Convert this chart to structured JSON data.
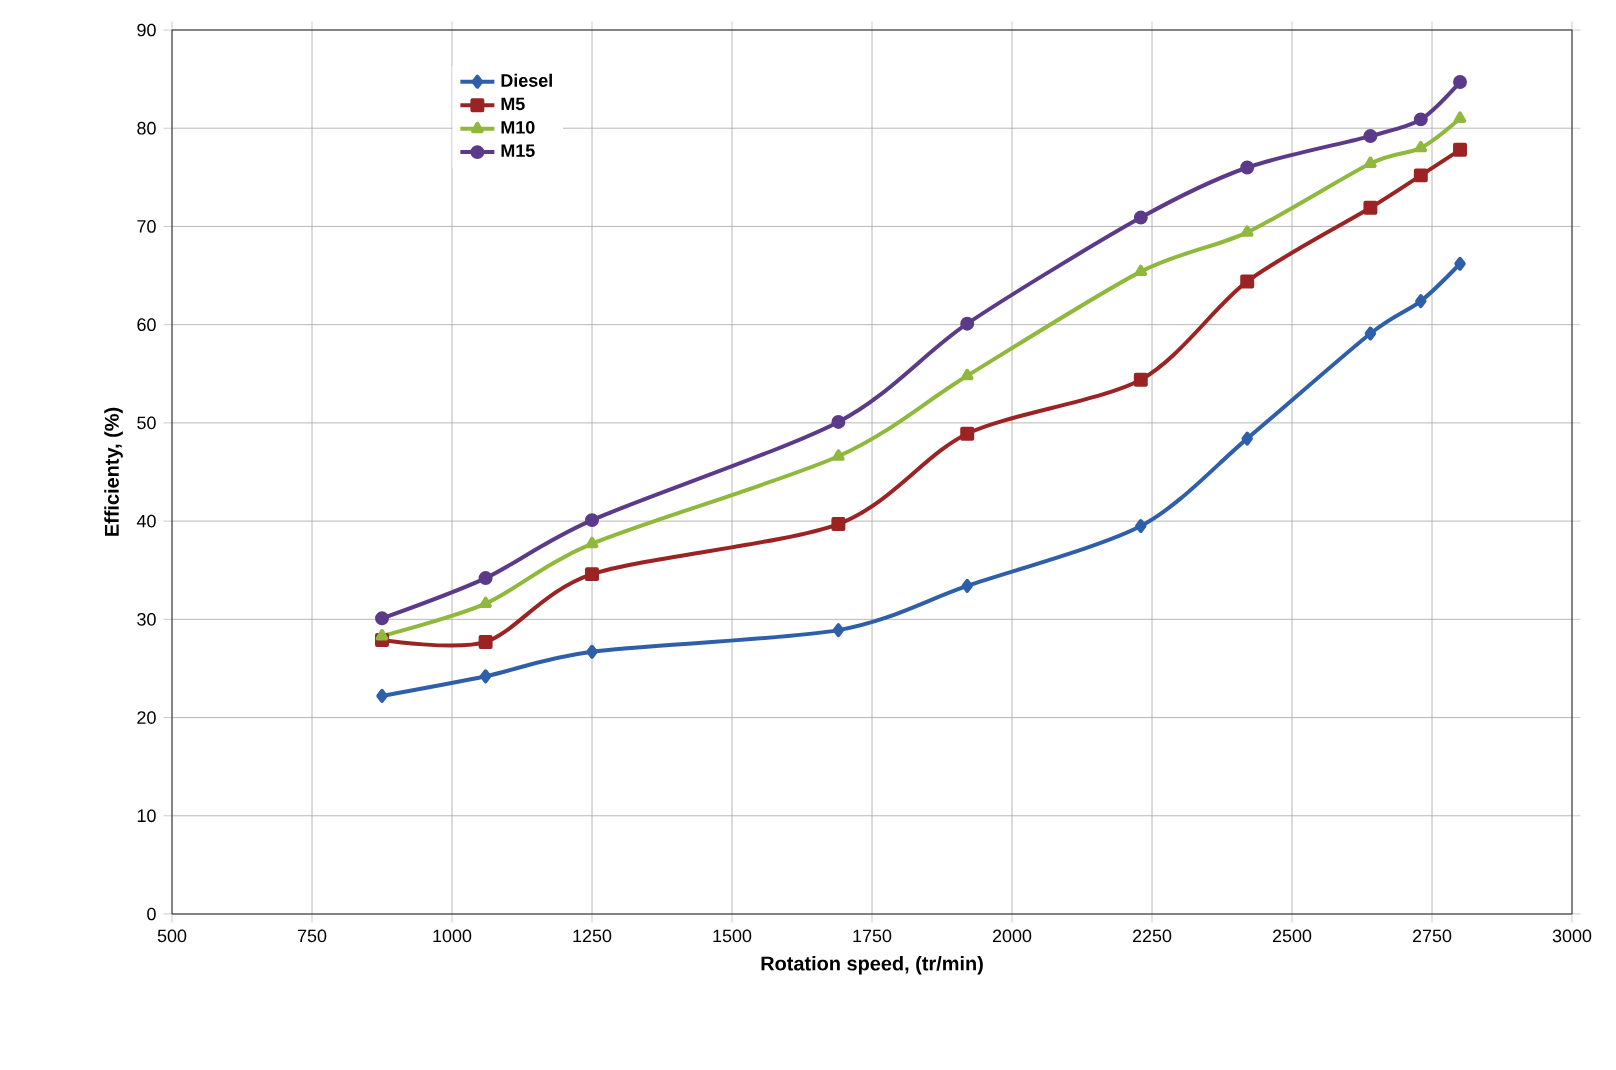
{
  "chart_data": {
    "type": "line",
    "xlabel": "Rotation speed, (tr/min)",
    "ylabel": "Efficienty, (%)",
    "x": [
      875,
      1060,
      1250,
      1690,
      1920,
      2230,
      2420,
      2640,
      2730,
      2800
    ],
    "series": [
      {
        "name": "Diesel",
        "color": "#2e5fa8",
        "marker": "diamond",
        "values": [
          22.2,
          24.2,
          26.7,
          28.9,
          33.4,
          39.5,
          48.4,
          59.1,
          62.4,
          66.2
        ]
      },
      {
        "name": "M5",
        "color": "#9b2323",
        "marker": "square",
        "values": [
          27.9,
          27.7,
          34.6,
          39.7,
          48.9,
          54.4,
          64.4,
          71.9,
          75.2,
          77.8
        ]
      },
      {
        "name": "M10",
        "color": "#8fb83c",
        "marker": "triangle",
        "values": [
          28.3,
          31.6,
          37.7,
          46.6,
          54.8,
          65.4,
          69.4,
          76.4,
          78.0,
          81.0
        ]
      },
      {
        "name": "M15",
        "color": "#5b3a8a",
        "marker": "circle",
        "values": [
          30.1,
          34.2,
          40.1,
          50.1,
          60.1,
          70.9,
          76.0,
          79.2,
          80.9,
          84.7
        ]
      }
    ],
    "xlim": [
      500,
      3000
    ],
    "xticks": [
      500,
      750,
      1000,
      1250,
      1500,
      1750,
      2000,
      2250,
      2500,
      2750,
      3000
    ],
    "ylim": [
      0,
      90
    ],
    "yticks": [
      0,
      10,
      20,
      30,
      40,
      50,
      60,
      70,
      80,
      90
    ],
    "grid": true,
    "legend": "top left",
    "line_style": "solid"
  }
}
